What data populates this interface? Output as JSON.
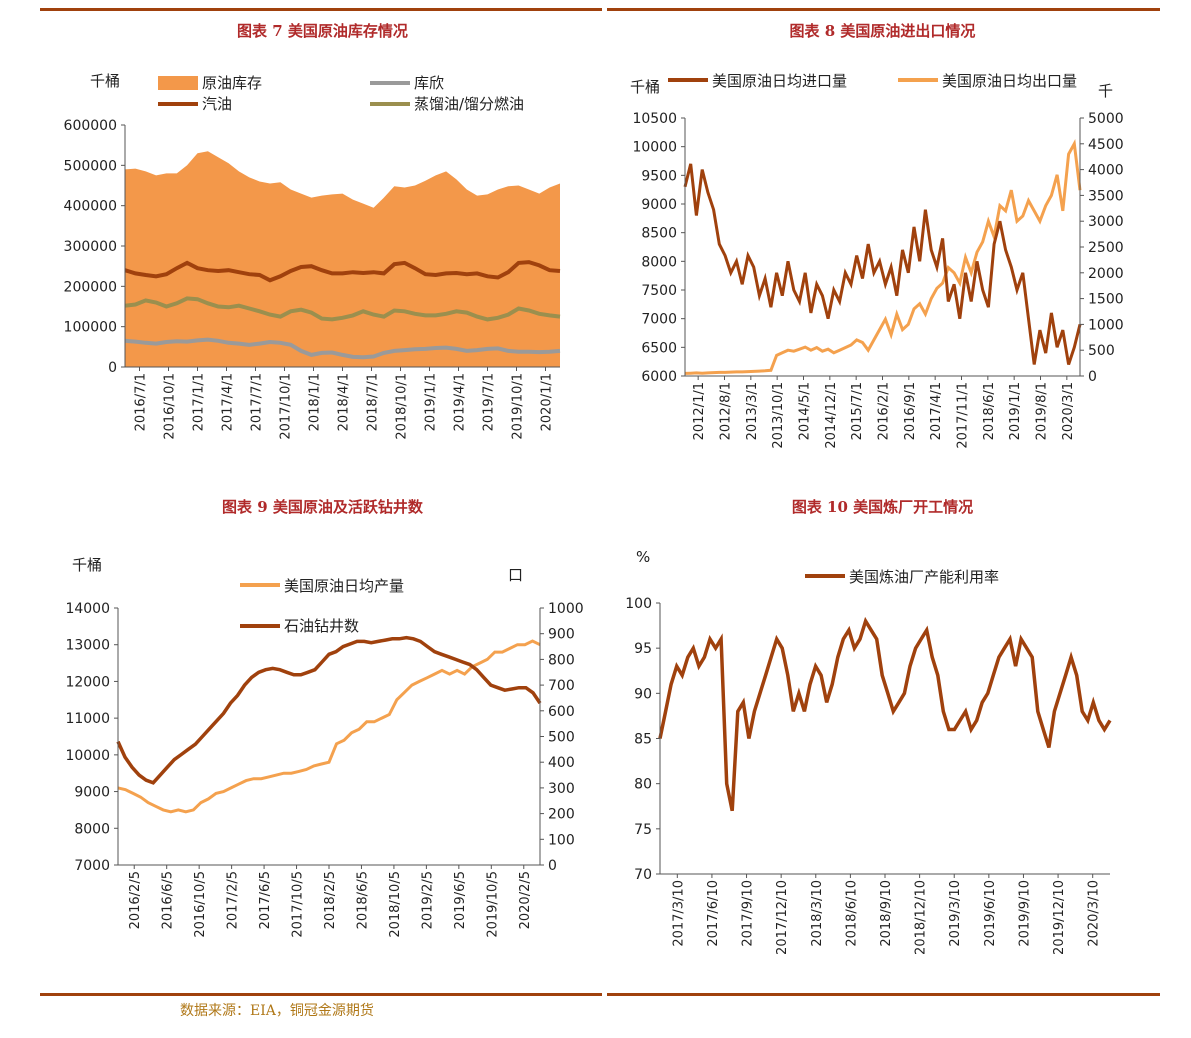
{
  "colors": {
    "rule": "#a0410d",
    "title": "#b02a2a",
    "source": "#b07818",
    "orange_fill": "#f3984a",
    "dark_brown": "#a0410d",
    "gray": "#9a9a9a",
    "olive": "#9b8f4e",
    "light_orange": "#f4a14e"
  },
  "source_text": "数据来源：EIA，铜冠金源期货",
  "chart_data": [
    {
      "type": "area",
      "title": "图表 7  美国原油库存情况",
      "unit_label": "千桶",
      "ylim": [
        0,
        600000
      ],
      "y_ticks": [
        "0",
        "100000",
        "200000",
        "300000",
        "400000",
        "500000",
        "600000"
      ],
      "x_ticks": [
        "2016/7/1",
        "2016/10/1",
        "2017/1/1",
        "2017/4/1",
        "2017/7/1",
        "2017/10/1",
        "2018/1/1",
        "2018/4/1",
        "2018/7/1",
        "2018/10/1",
        "2019/1/1",
        "2019/4/1",
        "2019/7/1",
        "2019/10/1",
        "2020/1/1"
      ],
      "legend": [
        "原油库存",
        "库欣",
        "汽油",
        "蒸馏油/馏分燃油"
      ],
      "series": [
        {
          "name": "原油库存",
          "style": "area",
          "values": [
            490000,
            492000,
            485000,
            475000,
            480000,
            480000,
            500000,
            530000,
            535000,
            520000,
            505000,
            485000,
            470000,
            460000,
            455000,
            458000,
            440000,
            430000,
            420000,
            425000,
            428000,
            430000,
            415000,
            405000,
            395000,
            420000,
            448000,
            445000,
            450000,
            462000,
            475000,
            485000,
            465000,
            440000,
            425000,
            428000,
            440000,
            448000,
            450000,
            440000,
            430000,
            445000,
            455000
          ]
        },
        {
          "name": "库欣",
          "style": "line",
          "values": [
            65000,
            63000,
            60000,
            58000,
            62000,
            64000,
            63000,
            66000,
            68000,
            65000,
            60000,
            58000,
            55000,
            58000,
            62000,
            60000,
            55000,
            40000,
            30000,
            35000,
            36000,
            30000,
            25000,
            24000,
            26000,
            35000,
            40000,
            42000,
            44000,
            45000,
            47000,
            48000,
            45000,
            40000,
            42000,
            45000,
            46000,
            40000,
            38000,
            38000,
            37000,
            38000,
            40000
          ]
        },
        {
          "name": "汽油",
          "style": "line",
          "values": [
            240000,
            232000,
            228000,
            225000,
            230000,
            245000,
            258000,
            245000,
            240000,
            238000,
            240000,
            235000,
            230000,
            228000,
            215000,
            225000,
            238000,
            248000,
            250000,
            240000,
            232000,
            232000,
            235000,
            233000,
            235000,
            232000,
            255000,
            258000,
            245000,
            230000,
            228000,
            232000,
            233000,
            230000,
            232000,
            225000,
            222000,
            235000,
            258000,
            260000,
            252000,
            240000,
            238000
          ]
        },
        {
          "name": "蒸馏油/馏分燃油",
          "style": "line",
          "values": [
            152000,
            155000,
            165000,
            160000,
            150000,
            158000,
            170000,
            168000,
            158000,
            150000,
            148000,
            152000,
            145000,
            138000,
            130000,
            125000,
            138000,
            142000,
            135000,
            120000,
            118000,
            122000,
            128000,
            138000,
            130000,
            125000,
            140000,
            138000,
            132000,
            128000,
            128000,
            132000,
            138000,
            135000,
            125000,
            118000,
            122000,
            130000,
            145000,
            140000,
            132000,
            128000,
            125000
          ]
        }
      ]
    },
    {
      "type": "line",
      "title": "图表 8 美国原油进出口情况",
      "unit_left": "千桶",
      "unit_right": "千",
      "ylim_left": [
        6000,
        10500
      ],
      "ylim_right": [
        0,
        5000
      ],
      "y_ticks_left": [
        "6000",
        "6500",
        "7000",
        "7500",
        "8000",
        "8500",
        "9000",
        "9500",
        "10000",
        "10500"
      ],
      "y_ticks_right": [
        "0",
        "500",
        "1000",
        "1500",
        "2000",
        "2500",
        "3000",
        "3500",
        "4000",
        "4500",
        "5000"
      ],
      "x_ticks": [
        "2012/1/1",
        "2012/8/1",
        "2013/3/1",
        "2013/10/1",
        "2014/5/1",
        "2014/12/1",
        "2015/7/1",
        "2016/2/1",
        "2016/9/1",
        "2017/4/1",
        "2017/11/1",
        "2018/6/1",
        "2019/1/1",
        "2019/8/1",
        "2020/3/1"
      ],
      "legend": [
        "美国原油日均进口量",
        "美国原油日均出口量"
      ],
      "series": [
        {
          "name": "美国原油日均进口量",
          "axis": "left",
          "values": [
            9300,
            9700,
            8800,
            9600,
            9200,
            8900,
            8300,
            8100,
            7800,
            8000,
            7600,
            8100,
            7900,
            7400,
            7700,
            7200,
            7800,
            7400,
            8000,
            7500,
            7300,
            7800,
            7100,
            7600,
            7400,
            7000,
            7500,
            7300,
            7800,
            7600,
            8100,
            7700,
            8300,
            7800,
            8000,
            7600,
            7900,
            7400,
            8200,
            7800,
            8600,
            8000,
            8900,
            8200,
            7900,
            8400,
            7300,
            7600,
            7000,
            7800,
            7300,
            8000,
            7500,
            7200,
            8300,
            8700,
            8200,
            7900,
            7500,
            7800,
            7000,
            6200,
            6800,
            6400,
            7100,
            6500,
            6800,
            6200,
            6500,
            6900
          ]
        },
        {
          "name": "美国原油日均出口量",
          "axis": "right",
          "values": [
            50,
            55,
            60,
            55,
            60,
            65,
            70,
            70,
            75,
            80,
            80,
            85,
            90,
            95,
            100,
            110,
            400,
            450,
            500,
            480,
            520,
            560,
            500,
            550,
            480,
            520,
            450,
            500,
            550,
            600,
            700,
            650,
            500,
            700,
            900,
            1100,
            800,
            1200,
            900,
            1000,
            1300,
            1400,
            1200,
            1500,
            1700,
            1800,
            2100,
            2000,
            1800,
            2300,
            2000,
            2400,
            2600,
            3000,
            2700,
            3300,
            3200,
            3600,
            3000,
            3100,
            3400,
            3200,
            3000,
            3300,
            3500,
            3900,
            3200,
            4300,
            4500,
            3600
          ]
        }
      ]
    },
    {
      "type": "line",
      "title": "图表 9  美国原油及活跃钻井数",
      "unit_left": "千桶",
      "unit_right": "口",
      "ylim_left": [
        7000,
        14000
      ],
      "ylim_right": [
        0,
        1000
      ],
      "y_ticks_left": [
        "7000",
        "8000",
        "9000",
        "10000",
        "11000",
        "12000",
        "13000",
        "14000"
      ],
      "y_ticks_right": [
        "0",
        "100",
        "200",
        "300",
        "400",
        "500",
        "600",
        "700",
        "800",
        "900",
        "1000"
      ],
      "x_ticks": [
        "2016/2/5",
        "2016/6/5",
        "2016/10/5",
        "2017/2/5",
        "2017/6/5",
        "2017/10/5",
        "2018/2/5",
        "2018/6/5",
        "2018/10/5",
        "2019/2/5",
        "2019/6/5",
        "2019/10/5",
        "2020/2/5"
      ],
      "legend": [
        "美国原油日均产量",
        "石油钻井数"
      ],
      "series": [
        {
          "name": "美国原油日均产量",
          "axis": "left",
          "values": [
            9100,
            9050,
            8950,
            8850,
            8700,
            8600,
            8500,
            8450,
            8500,
            8450,
            8500,
            8700,
            8800,
            8950,
            9000,
            9100,
            9200,
            9300,
            9350,
            9350,
            9400,
            9450,
            9500,
            9500,
            9550,
            9600,
            9700,
            9750,
            9800,
            10300,
            10400,
            10600,
            10700,
            10900,
            10900,
            11000,
            11100,
            11500,
            11700,
            11900,
            12000,
            12100,
            12200,
            12300,
            12200,
            12300,
            12200,
            12400,
            12500,
            12600,
            12800,
            12800,
            12900,
            13000,
            13000,
            13100,
            13000
          ]
        },
        {
          "name": "石油钻井数",
          "axis": "right",
          "values": [
            480,
            420,
            380,
            350,
            330,
            320,
            350,
            380,
            410,
            430,
            450,
            470,
            500,
            530,
            560,
            590,
            630,
            660,
            700,
            730,
            750,
            760,
            765,
            760,
            750,
            740,
            740,
            750,
            760,
            790,
            820,
            830,
            850,
            860,
            870,
            870,
            865,
            870,
            875,
            880,
            880,
            885,
            880,
            870,
            850,
            830,
            820,
            810,
            800,
            790,
            780,
            760,
            730,
            700,
            690,
            680,
            685,
            690,
            690,
            670,
            630
          ]
        }
      ]
    },
    {
      "type": "line",
      "title": "图表 10 美国炼厂开工情况",
      "unit_label": "%",
      "ylim": [
        70,
        100
      ],
      "y_ticks": [
        "70",
        "75",
        "80",
        "85",
        "90",
        "95",
        "100"
      ],
      "x_ticks": [
        "2017/3/10",
        "2017/6/10",
        "2017/9/10",
        "2017/12/10",
        "2018/3/10",
        "2018/6/10",
        "2018/9/10",
        "2018/12/10",
        "2019/3/10",
        "2019/6/10",
        "2019/9/10",
        "2019/12/10",
        "2020/3/10"
      ],
      "legend": [
        "美国炼油厂产能利用率"
      ],
      "series": [
        {
          "name": "美国炼油厂产能利用率",
          "values": [
            85,
            88,
            91,
            93,
            92,
            94,
            95,
            93,
            94,
            96,
            95,
            96,
            80,
            77,
            88,
            89,
            85,
            88,
            90,
            92,
            94,
            96,
            95,
            92,
            88,
            90,
            88,
            91,
            93,
            92,
            89,
            91,
            94,
            96,
            97,
            95,
            96,
            98,
            97,
            96,
            92,
            90,
            88,
            89,
            90,
            93,
            95,
            96,
            97,
            94,
            92,
            88,
            86,
            86,
            87,
            88,
            86,
            87,
            89,
            90,
            92,
            94,
            95,
            96,
            93,
            96,
            95,
            94,
            88,
            86,
            84,
            88,
            90,
            92,
            94,
            92,
            88,
            87,
            89,
            87,
            86,
            87
          ]
        }
      ]
    }
  ]
}
